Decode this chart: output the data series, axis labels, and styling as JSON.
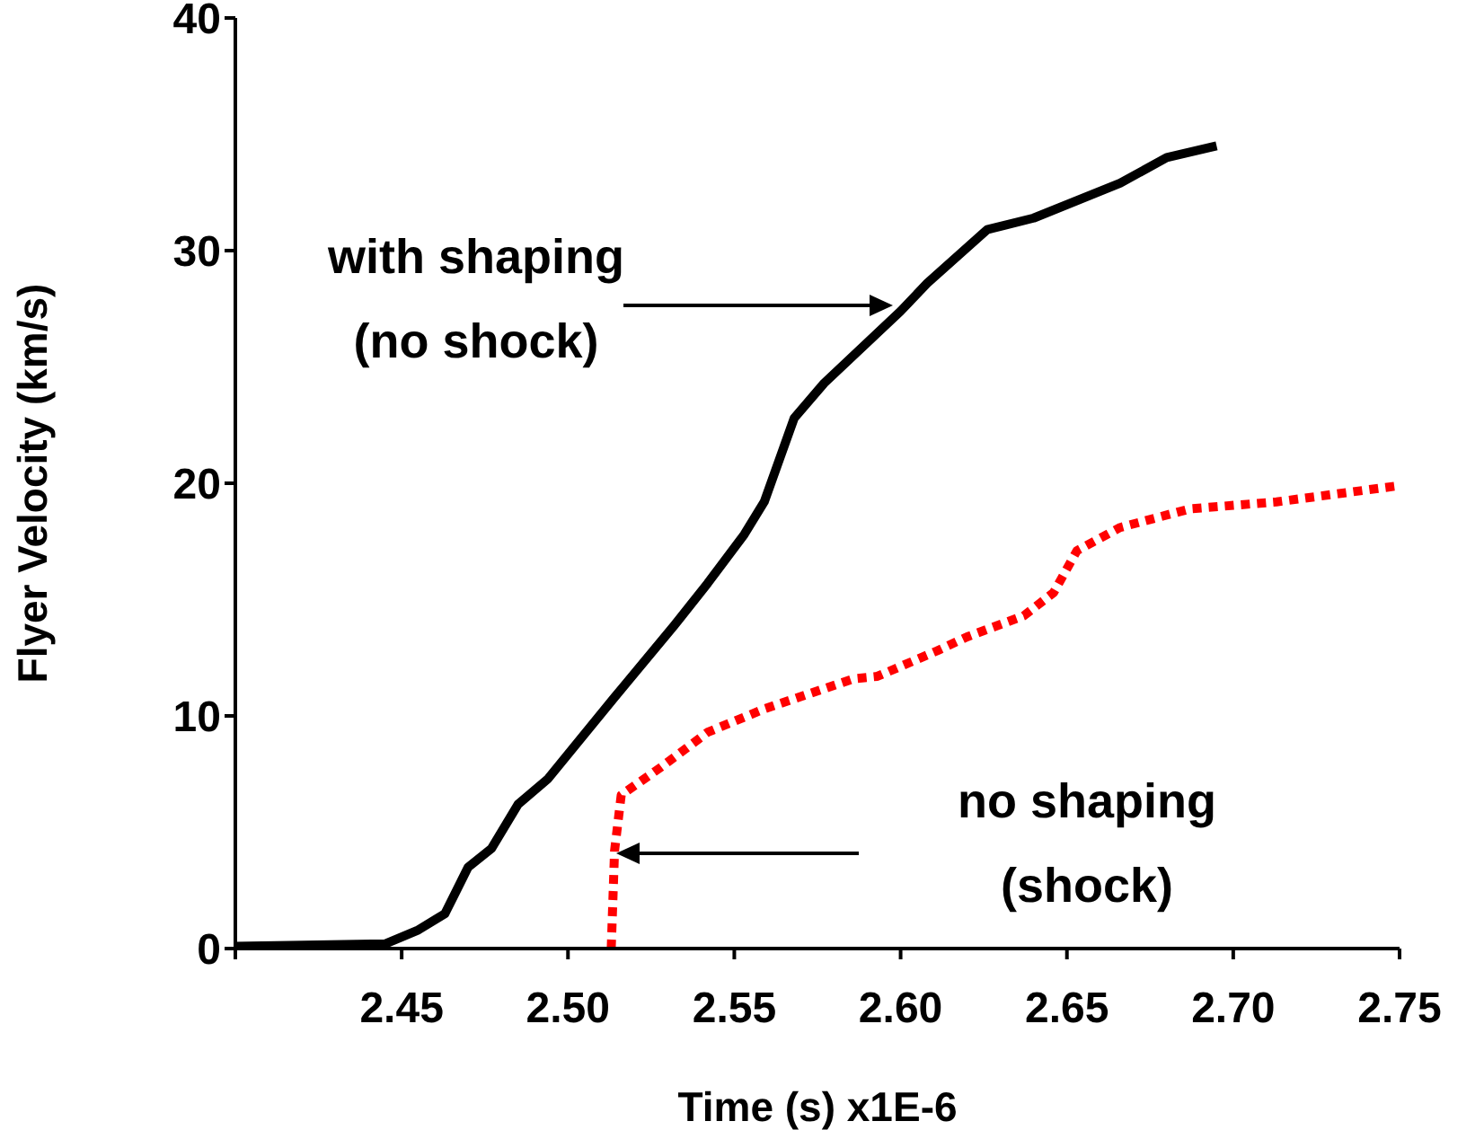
{
  "chart_data": {
    "type": "line",
    "xlabel": "Time  (s) x1E-6",
    "ylabel": "Flyer Velocity  (km/s)",
    "xlim": [
      2.4,
      2.75
    ],
    "xticks": [
      {
        "value": 2.4,
        "label": null
      },
      2.45,
      {
        "value": 2.5,
        "label": "2.50"
      },
      2.55,
      {
        "value": 2.6,
        "label": "2.60"
      },
      2.65,
      {
        "value": 2.7,
        "label": "2.70"
      },
      2.75
    ],
    "ylim": [
      0,
      40
    ],
    "yticks": [
      0,
      10,
      20,
      30,
      40
    ],
    "marker": "none",
    "series": [
      {
        "color": "#000000",
        "line_style": "solid",
        "x": [
          2.4,
          2.445,
          2.455,
          2.463,
          2.47,
          2.477,
          2.485,
          2.494,
          2.514,
          2.532,
          2.542,
          2.553,
          2.559,
          2.568,
          2.577,
          2.6,
          2.608,
          2.626,
          2.64,
          2.666,
          2.68,
          2.695
        ],
        "values": [
          0.1,
          0.2,
          0.8,
          1.5,
          3.5,
          4.3,
          6.2,
          7.3,
          10.8,
          13.9,
          15.7,
          17.8,
          19.2,
          22.8,
          24.3,
          27.4,
          28.6,
          30.9,
          31.4,
          32.9,
          34.0,
          34.5
        ]
      },
      {
        "color": "#ff0000",
        "line_style": "dotted",
        "x": [
          2.513,
          2.514,
          2.516,
          2.528,
          2.542,
          2.559,
          2.586,
          2.593,
          2.611,
          2.62,
          2.637,
          2.646,
          2.653,
          2.666,
          2.687,
          2.713,
          2.75
        ],
        "values": [
          0,
          4.2,
          6.6,
          7.8,
          9.3,
          10.3,
          11.6,
          11.7,
          12.8,
          13.4,
          14.3,
          15.3,
          17.1,
          18.1,
          18.9,
          19.2,
          19.9
        ]
      }
    ],
    "annotations": [
      "with shaping\n(no shock)",
      "no shaping\n(shock)"
    ]
  }
}
